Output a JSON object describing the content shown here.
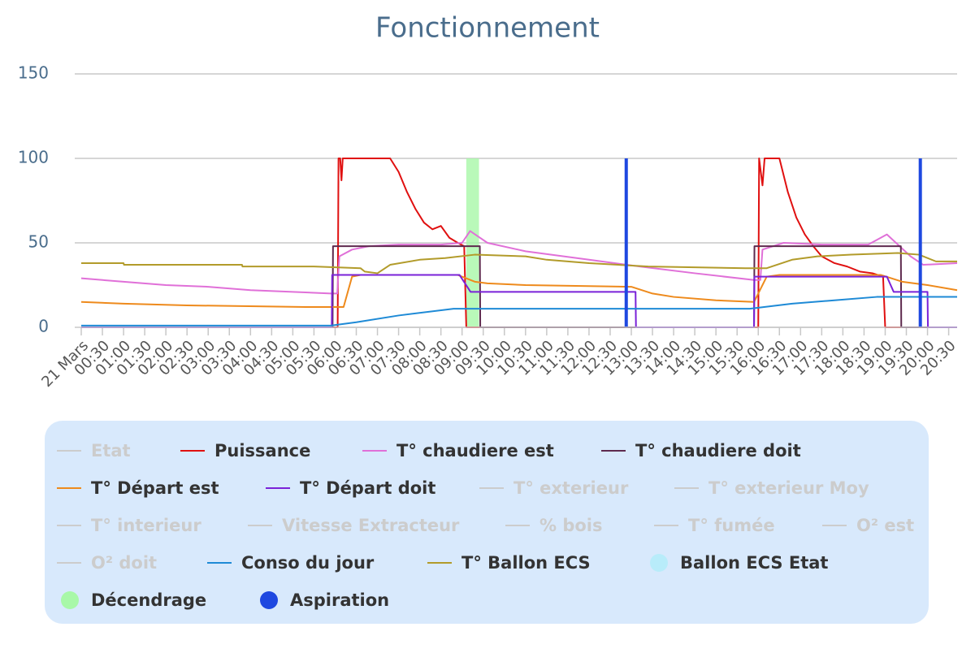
{
  "chart_data": {
    "type": "line",
    "title": "Fonctionnement",
    "xlim": [
      0,
      20.7
    ],
    "ylim": [
      0,
      150
    ],
    "yticks": [
      0,
      50,
      100,
      150
    ],
    "grid": true,
    "xticks": [
      {
        "value": 0,
        "label": "21 Mars"
      },
      {
        "value": 0.5,
        "label": "00:30"
      },
      {
        "value": 1,
        "label": "01:00"
      },
      {
        "value": 1.5,
        "label": "01:30"
      },
      {
        "value": 2,
        "label": "02:00"
      },
      {
        "value": 2.5,
        "label": "02:30"
      },
      {
        "value": 3,
        "label": "03:00"
      },
      {
        "value": 3.5,
        "label": "03:30"
      },
      {
        "value": 4,
        "label": "04:00"
      },
      {
        "value": 4.5,
        "label": "04:30"
      },
      {
        "value": 5,
        "label": "05:00"
      },
      {
        "value": 5.5,
        "label": "05:30"
      },
      {
        "value": 6,
        "label": "06:00"
      },
      {
        "value": 6.5,
        "label": "06:30"
      },
      {
        "value": 7,
        "label": "07:00"
      },
      {
        "value": 7.5,
        "label": "07:30"
      },
      {
        "value": 8,
        "label": "08:00"
      },
      {
        "value": 8.5,
        "label": "08:30"
      },
      {
        "value": 9,
        "label": "09:00"
      },
      {
        "value": 9.5,
        "label": "09:30"
      },
      {
        "value": 10,
        "label": "10:00"
      },
      {
        "value": 10.5,
        "label": "10:30"
      },
      {
        "value": 11,
        "label": "11:00"
      },
      {
        "value": 11.5,
        "label": "11:30"
      },
      {
        "value": 12,
        "label": "12:00"
      },
      {
        "value": 12.5,
        "label": "12:30"
      },
      {
        "value": 13,
        "label": "13:00"
      },
      {
        "value": 13.5,
        "label": "13:30"
      },
      {
        "value": 14,
        "label": "14:00"
      },
      {
        "value": 14.5,
        "label": "14:30"
      },
      {
        "value": 15,
        "label": "15:00"
      },
      {
        "value": 15.5,
        "label": "15:30"
      },
      {
        "value": 16,
        "label": "16:00"
      },
      {
        "value": 16.5,
        "label": "16:30"
      },
      {
        "value": 17,
        "label": "17:00"
      },
      {
        "value": 17.5,
        "label": "17:30"
      },
      {
        "value": 18,
        "label": "18:00"
      },
      {
        "value": 18.5,
        "label": "18:30"
      },
      {
        "value": 19,
        "label": "19:00"
      },
      {
        "value": 19.5,
        "label": "19:30"
      },
      {
        "value": 20,
        "label": "20:00"
      },
      {
        "value": 20.5,
        "label": "20:30"
      }
    ],
    "series": [
      {
        "name": "Etat",
        "visible": false
      },
      {
        "name": "Puissance",
        "color": "#e01010",
        "kind": "line",
        "x": [
          0,
          6.06,
          6.08,
          6.12,
          6.15,
          6.18,
          7.3,
          7.5,
          7.7,
          7.9,
          8.1,
          8.3,
          8.5,
          8.7,
          8.9,
          9.05,
          9.1,
          16.0,
          16.02,
          16.1,
          16.15,
          16.5,
          16.7,
          16.9,
          17.1,
          17.3,
          17.5,
          17.8,
          18.1,
          18.4,
          18.7,
          18.95,
          19.0,
          20.7
        ],
        "values": [
          0,
          0,
          100,
          100,
          87,
          100,
          100,
          92,
          80,
          70,
          62,
          58,
          60,
          53,
          50,
          48,
          0,
          0,
          100,
          84,
          100,
          100,
          80,
          65,
          55,
          48,
          42,
          38,
          36,
          33,
          32,
          30,
          0,
          0
        ]
      },
      {
        "name": "T° chaudiere est",
        "color": "#e070d8",
        "kind": "line",
        "x": [
          0,
          1,
          2,
          3,
          4,
          5,
          5.9,
          6.05,
          6.1,
          6.4,
          6.8,
          7.5,
          8.5,
          9.0,
          9.19,
          9.6,
          10.5,
          12.0,
          13.2,
          14.5,
          15.9,
          16.05,
          16.1,
          16.6,
          17.5,
          18.6,
          19.04,
          19.6,
          19.9,
          20.7
        ],
        "values": [
          29,
          27,
          25,
          24,
          22,
          21,
          20,
          20,
          42,
          46,
          48,
          49,
          49,
          50,
          57,
          50,
          45,
          40,
          36,
          32,
          28,
          28,
          46,
          50,
          49,
          49,
          55,
          42,
          37,
          38
        ]
      },
      {
        "name": "T° chaudiere doit",
        "color": "#5e2a4e",
        "kind": "line",
        "x": [
          0,
          5.94,
          5.95,
          9.42,
          9.43,
          15.9,
          15.91,
          19.37,
          19.38,
          20.7
        ],
        "values": [
          0,
          0,
          48,
          48,
          0,
          0,
          48,
          48,
          0,
          0
        ]
      },
      {
        "name": "T° Départ est",
        "color": "#ee8a1c",
        "kind": "line",
        "x": [
          0,
          1,
          2.5,
          5.3,
          6.2,
          6.4,
          6.6,
          8.9,
          9.3,
          9.6,
          10.5,
          13.0,
          13.5,
          14.0,
          15.0,
          15.9,
          16.2,
          16.5,
          18.9,
          19.4,
          20.0,
          20.7
        ],
        "values": [
          15,
          14,
          13,
          12,
          12,
          30,
          31,
          31,
          27,
          26,
          25,
          24,
          20,
          18,
          16,
          15,
          30,
          31,
          31,
          27,
          25,
          22
        ]
      },
      {
        "name": "T° Départ doit",
        "color": "#7a22d8",
        "kind": "line",
        "x": [
          0,
          5.92,
          5.93,
          8.94,
          9.2,
          13.1,
          13.11,
          15.9,
          15.91,
          19.04,
          19.2,
          20.0,
          20.01,
          20.7
        ],
        "values": [
          0,
          0,
          31,
          31,
          21,
          21,
          0,
          0,
          30,
          30,
          21,
          21,
          0,
          0
        ]
      },
      {
        "name": "T° exterieur",
        "visible": false
      },
      {
        "name": "T° exterieur Moy",
        "visible": false
      },
      {
        "name": "T° interieur",
        "visible": false
      },
      {
        "name": "Vitesse Extracteur",
        "visible": false
      },
      {
        "name": "% bois",
        "visible": false
      },
      {
        "name": "T° fumée",
        "visible": false
      },
      {
        "name": "O² est",
        "visible": false
      },
      {
        "name": "O² doit",
        "visible": false
      },
      {
        "name": "Conso du jour",
        "color": "#1e8ad6",
        "kind": "line",
        "x": [
          0,
          5.9,
          6.5,
          7.5,
          8.8,
          15.8,
          16.8,
          17.8,
          18.8,
          20.7
        ],
        "values": [
          1,
          1,
          3,
          7,
          11,
          11,
          14,
          16,
          18,
          18
        ]
      },
      {
        "name": "T° Ballon ECS",
        "color": "#b29b2a",
        "kind": "line",
        "x": [
          0,
          1.0,
          1.01,
          3.8,
          3.81,
          5.5,
          6.6,
          6.7,
          7.0,
          7.3,
          8.0,
          8.6,
          9.3,
          10.5,
          11.0,
          12.0,
          13.4,
          15.7,
          16.2,
          16.8,
          17.4,
          18.2,
          19.3,
          19.8,
          20.2,
          20.7
        ],
        "values": [
          38,
          38,
          37,
          37,
          36,
          36,
          35,
          33,
          32,
          37,
          40,
          41,
          43,
          42,
          40,
          38,
          36,
          35,
          35,
          40,
          42,
          43,
          44,
          43,
          39,
          39
        ]
      },
      {
        "name": "Ballon ECS Etat",
        "color": "#b8ecfa",
        "kind": "area",
        "x": [],
        "values": []
      },
      {
        "name": "Décendrage",
        "color": "#a8f8a8",
        "kind": "area",
        "x": [
          9.1,
          9.4
        ],
        "values": [
          100,
          100
        ]
      },
      {
        "name": "Aspiration",
        "color": "#1e48e0",
        "kind": "column",
        "x": [
          12.88,
          19.83
        ],
        "values": [
          100,
          100
        ]
      }
    ]
  }
}
